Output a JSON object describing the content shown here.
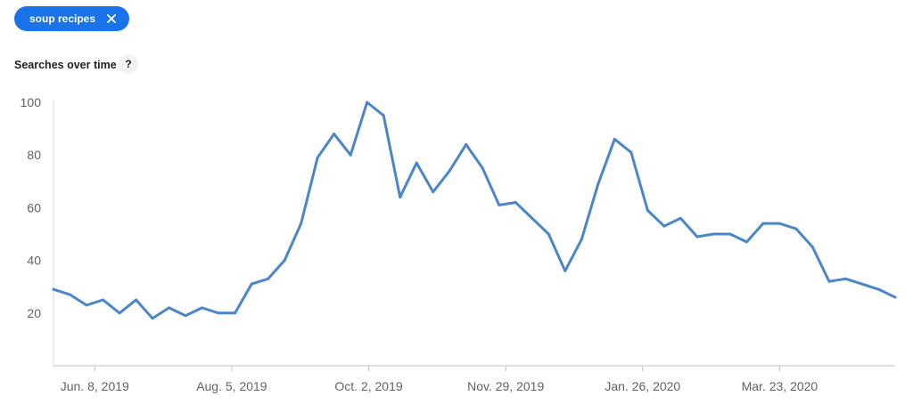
{
  "filter_chip": {
    "label": "soup recipes",
    "close_icon": "close-icon",
    "color": "#1a73e8"
  },
  "section": {
    "title": "Searches over time",
    "help_label": "?"
  },
  "chart_data": {
    "type": "line",
    "title": "",
    "xlabel": "",
    "ylabel": "",
    "ylim": [
      0,
      100
    ],
    "y_ticks": [
      20,
      40,
      60,
      80,
      100
    ],
    "x_tick_labels": [
      "Jun. 8, 2019",
      "Aug. 5, 2019",
      "Oct. 2, 2019",
      "Nov. 29, 2019",
      "Jan. 26, 2020",
      "Mar. 23, 2020"
    ],
    "x_tick_positions": [
      2.5,
      10.8,
      19.1,
      27.4,
      35.7,
      44.0
    ],
    "grid": false,
    "line_color": "#4a86c8",
    "series": [
      {
        "values": [
          29,
          27,
          23,
          25,
          20,
          25,
          18,
          22,
          19,
          22,
          20,
          20,
          31,
          33,
          40,
          54,
          79,
          88,
          80,
          100,
          95,
          64,
          77,
          66,
          74,
          84,
          75,
          61,
          62,
          56,
          50,
          36,
          48,
          69,
          86,
          81,
          59,
          53,
          56,
          49,
          50,
          50,
          47,
          54,
          54,
          52,
          45,
          32,
          33,
          31,
          29,
          26
        ]
      }
    ]
  }
}
